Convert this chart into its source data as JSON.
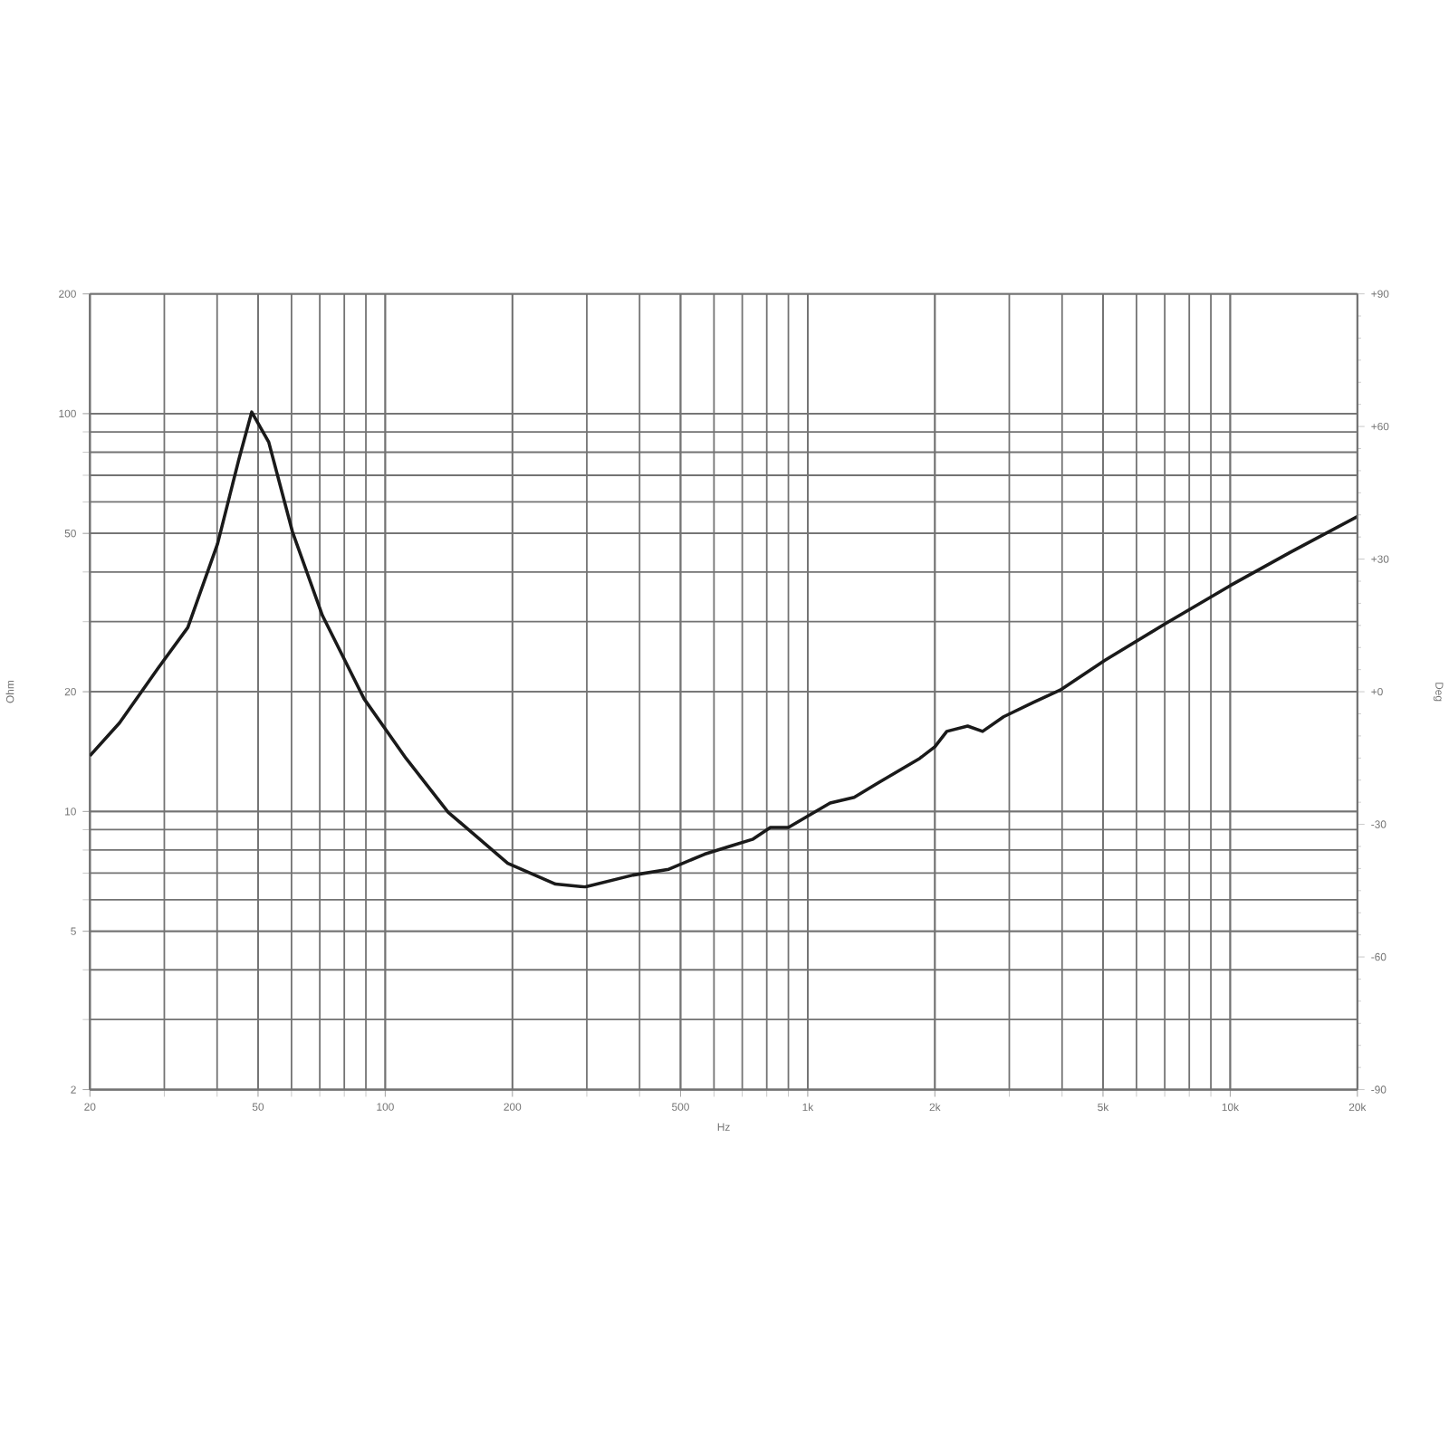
{
  "chart_data": {
    "type": "line",
    "xlabel": "Hz",
    "ylabel": "Ohm",
    "y2label": "Deg",
    "log": "xy",
    "grid": true,
    "x": [
      20,
      23.5,
      28.9,
      34.1,
      40.1,
      45,
      48.3,
      53,
      60.3,
      71,
      89.1,
      112,
      141,
      195,
      253,
      297,
      386,
      469,
      570,
      660,
      740,
      816,
      900,
      1130,
      1288,
      1468,
      1842,
      2000,
      2134,
      2391,
      2594,
      2908,
      3420,
      3962,
      5056,
      7003,
      10015,
      13870,
      20000
    ],
    "series": [
      {
        "color": "#1a1a1a",
        "values": [
          13.8,
          16.7,
          22.8,
          29,
          47.1,
          76.5,
          100.9,
          84.8,
          50.5,
          31.1,
          19.2,
          13.6,
          9.95,
          7.41,
          6.57,
          6.46,
          6.92,
          7.16,
          7.81,
          8.2,
          8.51,
          9.12,
          9.12,
          10.5,
          10.85,
          11.8,
          13.6,
          14.55,
          15.9,
          16.4,
          15.9,
          17.3,
          18.8,
          20.2,
          24,
          29.6,
          37,
          44.8,
          55.1
        ]
      }
    ],
    "xlim": [
      20,
      20000
    ],
    "xticks": [
      20,
      50,
      100,
      200,
      500,
      {
        "value": 1000,
        "label": "1k"
      },
      {
        "value": 2000,
        "label": "2k"
      },
      {
        "value": 5000,
        "label": "5k"
      },
      {
        "value": 10000,
        "label": "10k"
      },
      {
        "value": 20000,
        "label": "20k"
      }
    ],
    "ylim": [
      2,
      200
    ],
    "yticks": [
      2,
      5,
      10,
      20,
      50,
      100,
      200
    ],
    "y2lim": [
      -90,
      90
    ],
    "y2ticks": [
      {
        "value": 90,
        "label": "+90"
      },
      {
        "value": 60,
        "label": "+60"
      },
      {
        "value": 30,
        "label": "+30"
      },
      {
        "value": 0,
        "label": "+0"
      },
      -30,
      -60,
      -90
    ]
  }
}
